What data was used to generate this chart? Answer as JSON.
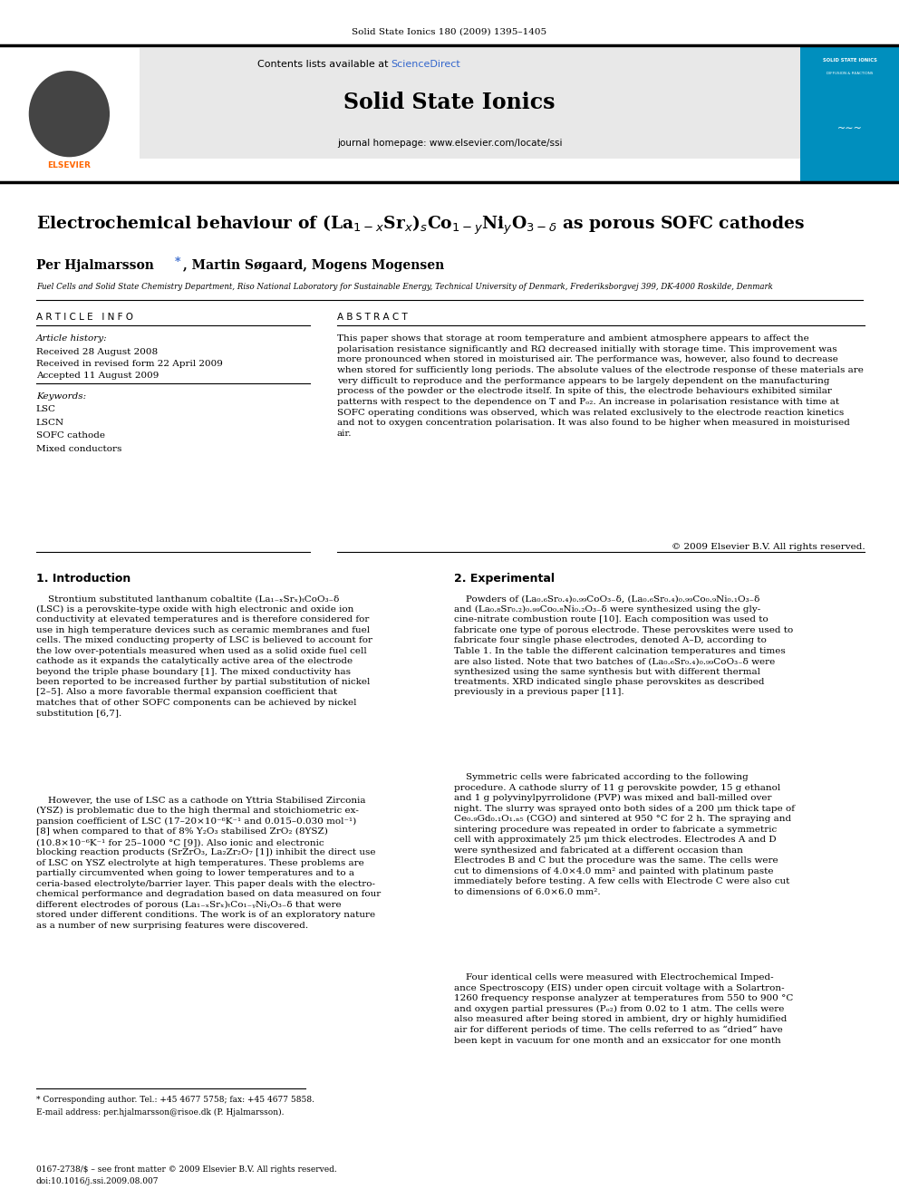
{
  "page_width": 9.92,
  "page_height": 13.23,
  "bg_color": "#ffffff",
  "journal_header": "Solid State Ionics 180 (2009) 1395–1405",
  "journal_name": "Solid State Ionics",
  "journal_homepage": "journal homepage: www.elsevier.com/locate/ssi",
  "contents_text": "Contents lists available at ",
  "sciencedirect_text": "ScienceDirect",
  "sciencedirect_color": "#3366cc",
  "header_bg": "#e8e8e8",
  "header_bg2": "#0099cc",
  "article_info_header": "A R T I C L E   I N F O",
  "abstract_header": "A B S T R A C T",
  "article_history_label": "Article history:",
  "received_date": "Received 28 August 2008",
  "revised_date": "Received in revised form 22 April 2009",
  "accepted_date": "Accepted 11 August 2009",
  "keywords_label": "Keywords:",
  "keywords": [
    "LSC",
    "LSCN",
    "SOFC cathode",
    "Mixed conductors"
  ],
  "abstract_text": "This paper shows that storage at room temperature and ambient atmosphere appears to affect the\npolarisation resistance significantly and RΩ decreased initially with storage time. This improvement was\nmore pronounced when stored in moisturised air. The performance was, however, also found to decrease\nwhen stored for sufficiently long periods. The absolute values of the electrode response of these materials are\nvery difficult to reproduce and the performance appears to be largely dependent on the manufacturing\nprocess of the powder or the electrode itself. In spite of this, the electrode behaviours exhibited similar\npatterns with respect to the dependence on T and Pₒ₂. An increase in polarisation resistance with time at\nSOFC operating conditions was observed, which was related exclusively to the electrode reaction kinetics\nand not to oxygen concentration polarisation. It was also found to be higher when measured in moisturised\nair.",
  "copyright_text": "© 2009 Elsevier B.V. All rights reserved.",
  "affiliation": "Fuel Cells and Solid State Chemistry Department, Riso National Laboratory for Sustainable Energy, Technical University of Denmark, Frederiksborgvej 399, DK-4000 Roskilde, Denmark",
  "intro_header": "1. Introduction",
  "experimental_header": "2. Experimental",
  "intro_para1": "    Strontium substituted lanthanum cobaltite (La₁₋ₓSrₓ)ₜCoO₃₋δ\n(LSC) is a perovskite-type oxide with high electronic and oxide ion\nconductivity at elevated temperatures and is therefore considered for\nuse in high temperature devices such as ceramic membranes and fuel\ncells. The mixed conducting property of LSC is believed to account for\nthe low over-potentials measured when used as a solid oxide fuel cell\ncathode as it expands the catalytically active area of the electrode\nbeyond the triple phase boundary [1]. The mixed conductivity has\nbeen reported to be increased further by partial substitution of nickel\n[2–5]. Also a more favorable thermal expansion coefficient that\nmatches that of other SOFC components can be achieved by nickel\nsubstitution [6,7].",
  "intro_para2": "    However, the use of LSC as a cathode on Yttria Stabilised Zirconia\n(YSZ) is problematic due to the high thermal and stoichiometric ex-\npansion coefficient of LSC (17–20×10⁻⁶K⁻¹ and 0.015–0.030 mol⁻¹)\n[8] when compared to that of 8% Y₂O₃ stabilised ZrO₂ (8YSZ)\n(10.8×10⁻⁶K⁻¹ for 25–1000 °C [9]). Also ionic and electronic\nblocking reaction products (SrZrO₃, La₂Zr₂O₇ [1]) inhibit the direct use\nof LSC on YSZ electrolyte at high temperatures. These problems are\npartially circumvented when going to lower temperatures and to a\nceria-based electrolyte/barrier layer. This paper deals with the electro-\nchemical performance and degradation based on data measured on four\ndifferent electrodes of porous (La₁₋ₓSrₓ)ₜCo₁₋ᵧNiᵧO₃₋δ that were\nstored under different conditions. The work is of an exploratory nature\nas a number of new surprising features were discovered.",
  "exp_para1": "    Powders of (La₀.₆Sr₀.₄)₀.₉₉CoO₃₋δ, (La₀.₆Sr₀.₄)₀.₉₉Co₀.₉Ni₀.₁O₃₋δ\nand (La₀.₈Sr₀.₂)₀.₉₉Co₀.₈Ni₀.₂O₃₋δ were synthesized using the gly-\ncine-nitrate combustion route [10]. Each composition was used to\nfabricate one type of porous electrode. These perovskites were used to\nfabricate four single phase electrodes, denoted A–D, according to\nTable 1. In the table the different calcination temperatures and times\nare also listed. Note that two batches of (La₀.₆Sr₀.₄)₀.₉₉CoO₃₋δ were\nsynthesized using the same synthesis but with different thermal\ntreatments. XRD indicated single phase perovskites as described\npreviously in a previous paper [11].",
  "exp_para2": "    Symmetric cells were fabricated according to the following\nprocedure. A cathode slurry of 11 g perovskite powder, 15 g ethanol\nand 1 g polyvinylpyrrolidone (PVP) was mixed and ball-milled over\nnight. The slurry was sprayed onto both sides of a 200 μm thick tape of\nCe₀.₉Gd₀.₁O₁.ₙ₅ (CGO) and sintered at 950 °C for 2 h. The spraying and\nsintering procedure was repeated in order to fabricate a symmetric\ncell with approximately 25 μm thick electrodes. Electrodes A and D\nwere synthesized and fabricated at a different occasion than\nElectrodes B and C but the procedure was the same. The cells were\ncut to dimensions of 4.0×4.0 mm² and painted with platinum paste\nimmediately before testing. A few cells with Electrode C were also cut\nto dimensions of 6.0×6.0 mm².",
  "exp_para3": "    Four identical cells were measured with Electrochemical Imped-\nance Spectroscopy (EIS) under open circuit voltage with a Solartron-\n1260 frequency response analyzer at temperatures from 550 to 900 °C\nand oxygen partial pressures (Pₒ₂) from 0.02 to 1 atm. The cells were\nalso measured after being stored in ambient, dry or highly humidified\nair for different periods of time. The cells referred to as “dried” have\nbeen kept in vacuum for one month and an exsiccator for one month",
  "footnote_star": "* Corresponding author. Tel.: +45 4677 5758; fax: +45 4677 5858.",
  "footnote_email": "E-mail address: per.hjalmarsson@risoe.dk (P. Hjalmarsson).",
  "footer_issn": "0167-2738/$ – see front matter © 2009 Elsevier B.V. All rights reserved.",
  "footer_doi": "doi:10.1016/j.ssi.2009.08.007"
}
